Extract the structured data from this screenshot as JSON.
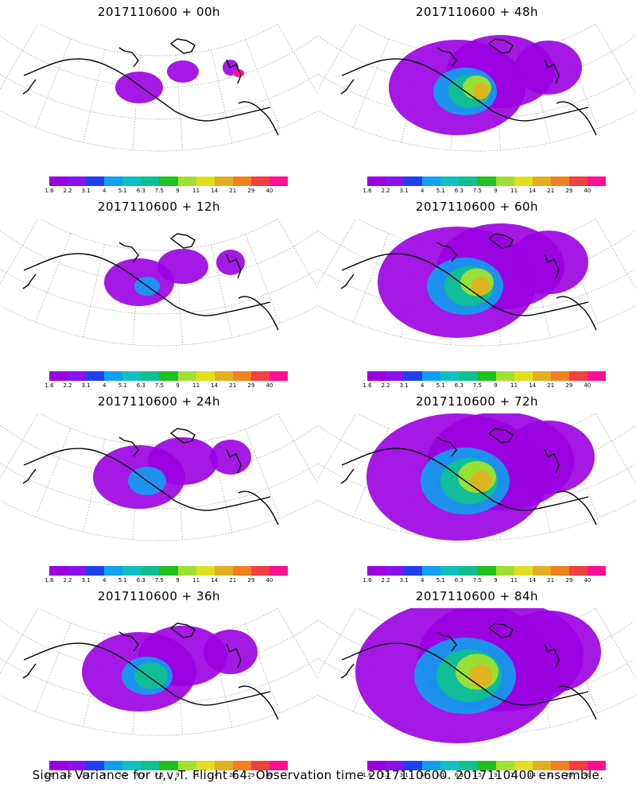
{
  "panels": [
    {
      "title": "2017110600 + 00h",
      "level": 0
    },
    {
      "title": "2017110600 + 48h",
      "level": 4
    },
    {
      "title": "2017110600 + 12h",
      "level": 1
    },
    {
      "title": "2017110600 + 60h",
      "level": 5
    },
    {
      "title": "2017110600 + 24h",
      "level": 2
    },
    {
      "title": "2017110600 + 72h",
      "level": 6
    },
    {
      "title": "2017110600 + 36h",
      "level": 3
    },
    {
      "title": "2017110600 + 84h",
      "level": 7
    }
  ],
  "colorbar": {
    "tick_labels": [
      "1.6",
      "2.2",
      "3.1",
      "4",
      "5.1",
      "6.3",
      "7.5",
      "9",
      "11",
      "14",
      "21",
      "29",
      "40"
    ],
    "colors": [
      "#9a00e0",
      "#8a10f0",
      "#2040f0",
      "#10a0f0",
      "#10c0c0",
      "#10c090",
      "#20c020",
      "#a0e030",
      "#e0e020",
      "#e0b020",
      "#f08020",
      "#f04040",
      "#ff1090"
    ]
  },
  "footer_text": "Signal Variance for u,v,T. Flight 64. Observation time 2017110600. 2017110400 ensemble."
}
